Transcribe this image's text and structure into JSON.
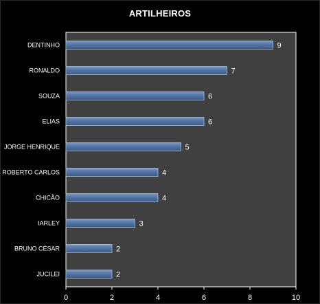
{
  "chart_data": {
    "type": "bar",
    "orientation": "horizontal",
    "title": "ARTILHEIROS",
    "categories": [
      "DENTINHO",
      "RONALDO",
      "SOUZA",
      "ELIAS",
      "JORGE HENRIQUE",
      "ROBERTO CARLOS",
      "CHICÃO",
      "IARLEY",
      "BRUNO CÉSAR",
      "JUCILEI"
    ],
    "values": [
      9,
      7,
      6,
      6,
      5,
      4,
      4,
      3,
      2,
      2
    ],
    "xlim": [
      0,
      10
    ],
    "xticks": [
      "0",
      "2",
      "4",
      "6",
      "8",
      "10"
    ],
    "grid": false,
    "legend": "none",
    "colors": {
      "background": "#000000",
      "plot_area": "#404040",
      "bar_fill": "#4a6790",
      "bar_highlight": "#7f9cc6",
      "text": "#ffffff"
    }
  }
}
